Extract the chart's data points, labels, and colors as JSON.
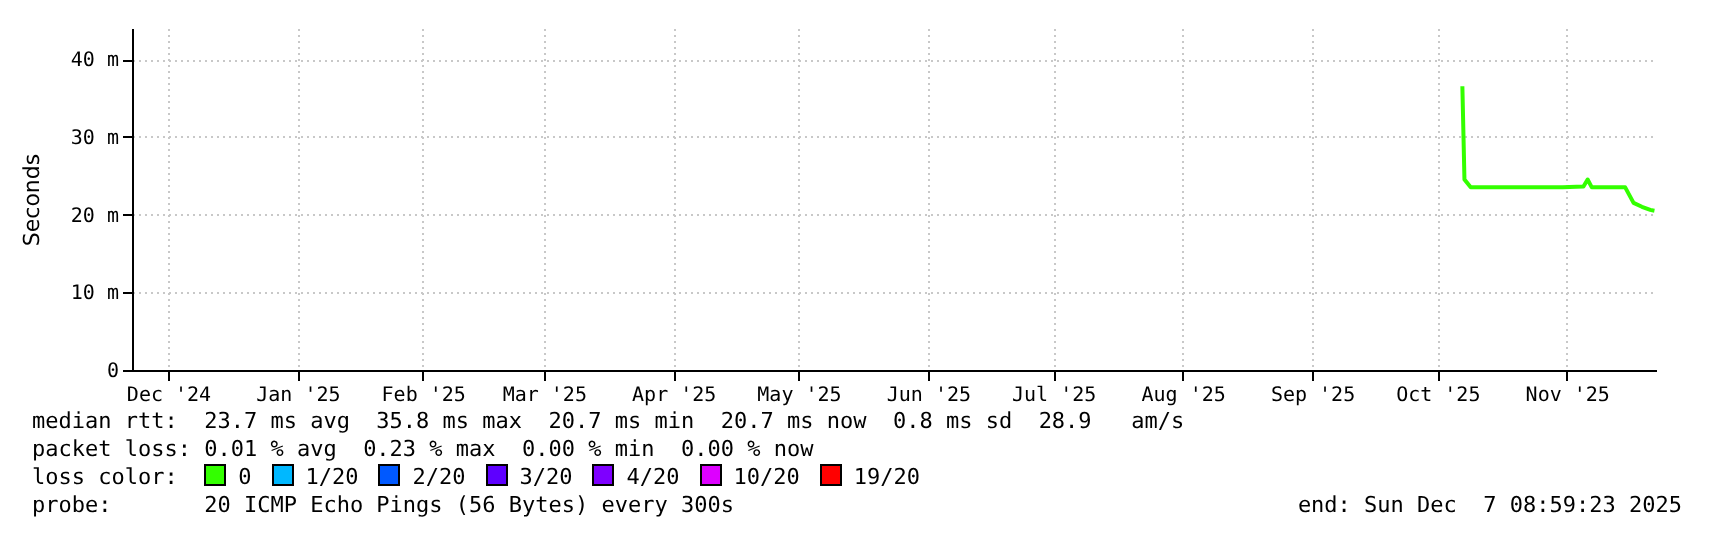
{
  "chart_data": {
    "type": "line",
    "ylabel": "Seconds",
    "legend_title": "loss color:",
    "legend": "bottom",
    "grid": true,
    "marker": "none",
    "line_style": "solid",
    "x": [
      "2025-10-22T00:00",
      "2025-10-22T12:00",
      "2025-10-24T00:00",
      "2025-11-05T00:00",
      "2025-11-15T00:00",
      "2025-11-20T00:00",
      "2025-11-21T00:00",
      "2025-11-22T00:00",
      "2025-11-30T00:00",
      "2025-12-01T00:00",
      "2025-12-02T00:00",
      "2025-12-04T00:00",
      "2025-12-06T00:00",
      "2025-12-07T00:00"
    ],
    "series": [
      {
        "name": "0",
        "color": "#33ff00",
        "values": [
          36.5,
          24.5,
          23.5,
          23.5,
          23.5,
          23.6,
          24.5,
          23.5,
          23.5,
          22.5,
          21.5,
          21,
          20.6,
          20.5
        ]
      },
      {
        "name": "1/20",
        "color": "#00b8ff",
        "values": [
          null,
          null,
          null,
          null,
          null,
          null,
          null,
          null,
          null,
          null,
          null,
          null,
          null,
          null
        ]
      },
      {
        "name": "2/20",
        "color": "#0059ff",
        "values": [
          null,
          null,
          null,
          null,
          null,
          null,
          null,
          null,
          null,
          null,
          null,
          null,
          null,
          null
        ]
      },
      {
        "name": "3/20",
        "color": "#5e00ff",
        "values": [
          null,
          null,
          null,
          null,
          null,
          null,
          null,
          null,
          null,
          null,
          null,
          null,
          null,
          null
        ]
      },
      {
        "name": "4/20",
        "color": "#7e00ff",
        "values": [
          null,
          null,
          null,
          null,
          null,
          null,
          null,
          null,
          null,
          null,
          null,
          null,
          null,
          null
        ]
      },
      {
        "name": "10/20",
        "color": "#dd00ff",
        "values": [
          null,
          null,
          null,
          null,
          null,
          null,
          null,
          null,
          null,
          null,
          null,
          null,
          null,
          null
        ]
      },
      {
        "name": "19/20",
        "color": "#ff0000",
        "values": [
          null,
          null,
          null,
          null,
          null,
          null,
          null,
          null,
          null,
          null,
          null,
          null,
          null,
          null
        ]
      }
    ],
    "xlim": [
      "2024-12-07T09:00",
      "2025-12-07T09:00"
    ],
    "xticks": [
      {
        "value": "2024-12-16T00:00",
        "label": "Dec '24"
      },
      {
        "value": "2025-01-16T00:00",
        "label": "Jan '25"
      },
      {
        "value": "2025-02-15T00:00",
        "label": "Feb '25"
      },
      {
        "value": "2025-03-16T00:00",
        "label": "Mar '25"
      },
      {
        "value": "2025-04-16T00:00",
        "label": "Apr '25"
      },
      {
        "value": "2025-05-16T00:00",
        "label": "May '25"
      },
      {
        "value": "2025-06-16T00:00",
        "label": "Jun '25"
      },
      {
        "value": "2025-07-16T00:00",
        "label": "Jul '25"
      },
      {
        "value": "2025-08-16T00:00",
        "label": "Aug '25"
      },
      {
        "value": "2025-09-16T00:00",
        "label": "Sep '25"
      },
      {
        "value": "2025-10-16T00:00",
        "label": "Oct '25"
      },
      {
        "value": "2025-11-16T00:00",
        "label": "Nov '25"
      }
    ],
    "ylim": [
      0,
      44
    ],
    "yticks": [
      0,
      {
        "value": 10,
        "label": "10 m"
      },
      {
        "value": 20,
        "label": "20 m"
      },
      {
        "value": 30,
        "label": "30 m"
      },
      {
        "value": 40,
        "label": "40 m"
      }
    ],
    "annotations": [
      "median rtt:  23.7 ms avg  35.8 ms max  20.7 ms min  20.7 ms now  0.8 ms sd  28.9   am/s",
      "packet loss: 0.01 % avg  0.23 % max  0.00 % min  0.00 % now",
      "probe:       20 ICMP Echo Pings (56 Bytes) every 300s",
      "end: Sun Dec  7 08:59:23 2025"
    ]
  }
}
